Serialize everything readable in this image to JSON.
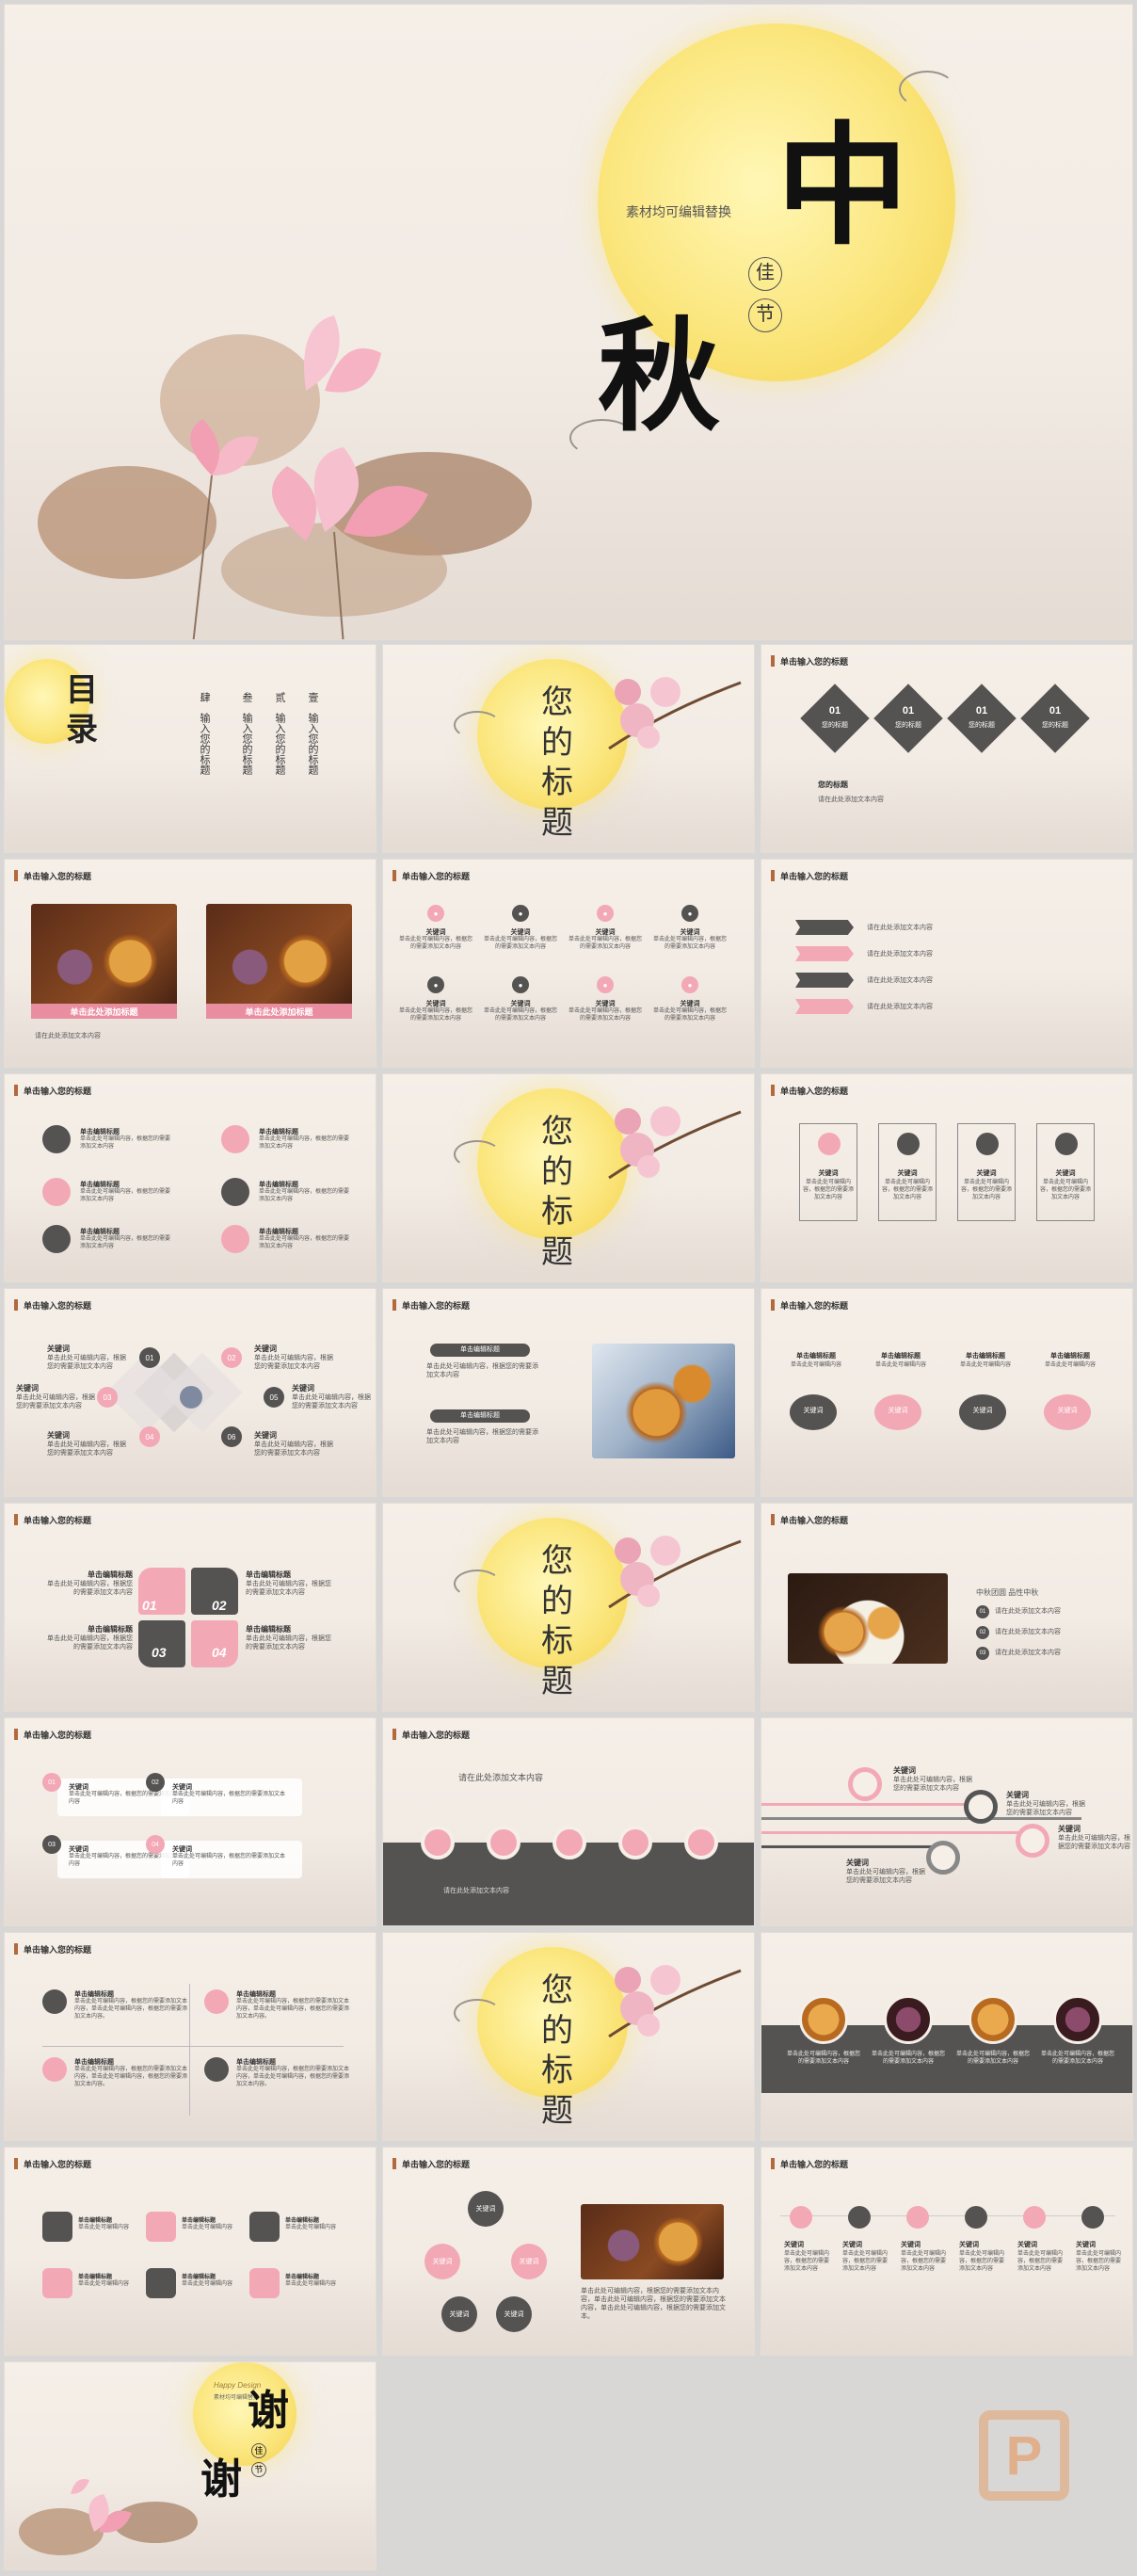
{
  "cover": {
    "zhong": "中",
    "qiu": "秋",
    "jia": "佳",
    "jie": "节",
    "subtitle": "素材均可编辑替换"
  },
  "toc": {
    "title_1": "目",
    "title_2": "录",
    "columns": [
      {
        "num": "壹",
        "text": "输入您的标题"
      },
      {
        "num": "贰",
        "text": "输入您的标题"
      },
      {
        "num": "叁",
        "text": "输入您的标题"
      },
      {
        "num": "肆",
        "text": "输入您的标题"
      }
    ]
  },
  "section_title": [
    "您",
    "的",
    "标",
    "题"
  ],
  "header": "单击输入您的标题",
  "s3": {
    "items": [
      {
        "num": "01",
        "label": "您的标题"
      },
      {
        "num": "01",
        "label": "您的标题"
      },
      {
        "num": "01",
        "label": "您的标题"
      },
      {
        "num": "01",
        "label": "您的标题"
      }
    ],
    "title": "您的标题",
    "text": "请在此处添加文本内容"
  },
  "s4": {
    "label_1": "单击此处添加标题",
    "label_2": "单击此处添加标题",
    "caption": "请在此处添加文本内容"
  },
  "s5": {
    "keyword": "关键词",
    "text": "单击此处可编辑内容，根据您的需要添加文本内容"
  },
  "s6": {
    "text": "请在此处添加文本内容",
    "items": [
      "请在此处添加文本内容",
      "请在此处添加文本内容",
      "请在此处添加文本内容",
      "请在此处添加文本内容"
    ]
  },
  "s7": {
    "title": "单击编辑标题",
    "text": "单击此处可编辑内容，根据您的需要添加文本内容"
  },
  "s9": {
    "keyword": "关键词",
    "text": "单击此处可编辑内容，根据您的需要添加文本内容"
  },
  "s10": {
    "keyword": "关键词",
    "text": "单击此处可编辑内容，根据您的需要添加文本内容",
    "nums": [
      "01",
      "02",
      "03",
      "04",
      "05",
      "06"
    ]
  },
  "s11": {
    "title": "单击编辑标题",
    "text": "单击此处可编辑内容，根据您的需要添加文本内容"
  },
  "s12": {
    "title": "单击编辑标题",
    "keyword": "关键词",
    "text": "单击此处可编辑内容"
  },
  "s13": {
    "title": "单击编辑标题",
    "text": "单击此处可编辑内容，根据您的需要添加文本内容",
    "nums": [
      "01",
      "02",
      "03",
      "04"
    ]
  },
  "s15": {
    "heading": "中秋团圆 品性中秋",
    "items": [
      {
        "num": "01",
        "text": "请在此处添加文本内容"
      },
      {
        "num": "02",
        "text": "请在此处添加文本内容"
      },
      {
        "num": "03",
        "text": "请在此处添加文本内容"
      }
    ]
  },
  "s16": {
    "keyword": "关键词",
    "text": "单击此处可编辑内容，根据您的需要添加文本内容",
    "nums": [
      "01",
      "02",
      "03",
      "04"
    ]
  },
  "s17": {
    "top": "请在此处添加文本内容",
    "bottom": "请在此处添加文本内容"
  },
  "s18": {
    "keyword": "关键词",
    "text": "单击此处可编辑内容，根据您的需要添加文本内容"
  },
  "s19": {
    "title": "单击编辑标题",
    "text": "单击此处可编辑内容，根据您的需要添加文本内容，单击此处可编辑内容，根据您的需要添加文本内容。"
  },
  "s21": {
    "text": "单击此处可编辑内容，根据您的需要添加文本内容"
  },
  "s22": {
    "title": "单击编辑标题",
    "text": "单击此处可编辑内容"
  },
  "s23": {
    "keyword": "关键词",
    "text": "单击此处可编辑内容，根据您的需要添加文本内容，单击此处可编辑内容，根据您的需要添加文本内容，单击此处可编辑内容，根据您的需要添加文本。"
  },
  "s24": {
    "keyword": "关键词",
    "text": "单击此处可编辑内容，根据您的需要添加文本内容"
  },
  "thanks": {
    "xie1": "谢",
    "xie2": "谢",
    "jia": "佳",
    "jie": "节",
    "eng": "Happy Design",
    "sub": "素材均可编辑替换"
  },
  "logo": "P",
  "colors": {
    "pink": "#f3a8b6",
    "dark": "#555352",
    "moon": "#fbe67d",
    "accent": "#b26a3c"
  }
}
